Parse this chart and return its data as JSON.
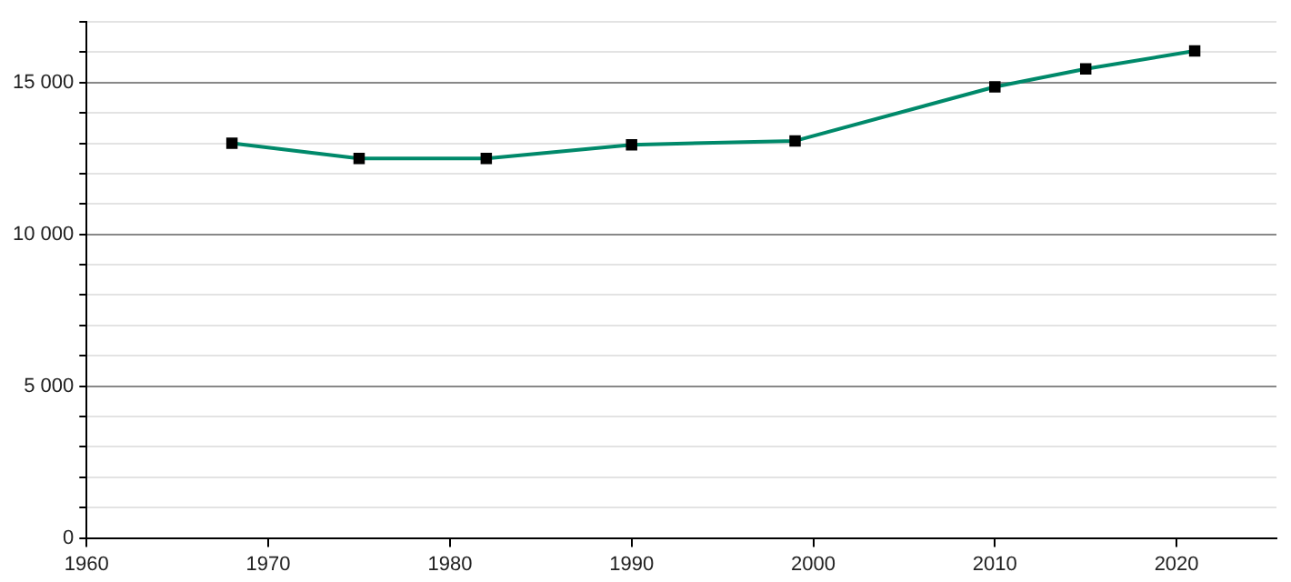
{
  "chart_data": {
    "type": "line",
    "x": [
      1968,
      1975,
      1982,
      1990,
      1999,
      2010,
      2015,
      2021
    ],
    "series": [
      {
        "color": "#00896a",
        "values": [
          13000,
          12500,
          12500,
          12950,
          13080,
          14860,
          15450,
          16040
        ]
      }
    ],
    "xlim": [
      1960,
      2025.5
    ],
    "xticks": [
      1960,
      1970,
      1980,
      1990,
      2000,
      2010,
      2020
    ],
    "ylim": [
      0,
      17000
    ],
    "yticks": [
      {
        "value": 0,
        "label": "0"
      },
      {
        "value": 1000,
        "label": null
      },
      {
        "value": 2000,
        "label": null
      },
      {
        "value": 3000,
        "label": null
      },
      {
        "value": 4000,
        "label": null
      },
      {
        "value": 5000,
        "label": "5 000"
      },
      {
        "value": 6000,
        "label": null
      },
      {
        "value": 7000,
        "label": null
      },
      {
        "value": 8000,
        "label": null
      },
      {
        "value": 9000,
        "label": null
      },
      {
        "value": 10000,
        "label": "10 000"
      },
      {
        "value": 11000,
        "label": null
      },
      {
        "value": 12000,
        "label": null
      },
      {
        "value": 13000,
        "label": null
      },
      {
        "value": 14000,
        "label": null
      },
      {
        "value": 15000,
        "label": "15 000"
      },
      {
        "value": 16000,
        "label": null
      },
      {
        "value": 17000,
        "label": null
      }
    ],
    "grid": "y",
    "legend": false,
    "marker": "square",
    "line_style": "solid"
  }
}
